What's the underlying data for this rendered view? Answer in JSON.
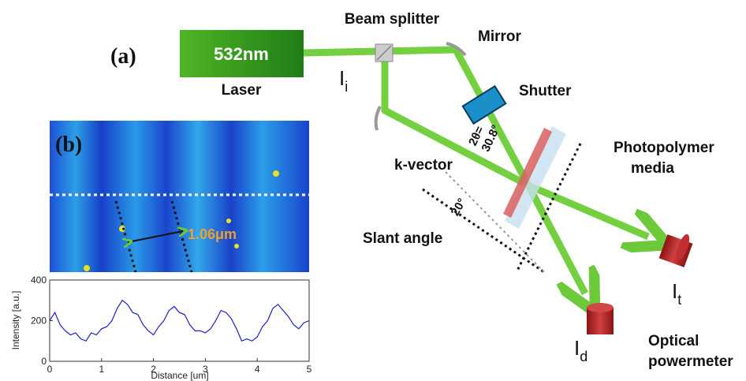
{
  "panel_a": {
    "tag": "(a)",
    "laser_wavelength": "532nm",
    "laser": "Laser",
    "beam_splitter": "Beam splitter",
    "mirror": "Mirror",
    "incident": {
      "main": "I",
      "sub": "i"
    },
    "shutter": "Shutter",
    "angle_2theta": [
      "2θ=",
      "30.8°"
    ],
    "k_vector": "k-vector",
    "media": [
      "Photopolymer",
      "media"
    ],
    "slant_value": "20°",
    "slant_angle": "Slant angle",
    "transmitted": {
      "main": "I",
      "sub": "t"
    },
    "diffracted": {
      "main": "I",
      "sub": "d"
    },
    "powermeter": [
      "Optical",
      "powermeter"
    ]
  },
  "panel_b": {
    "tag": "(b)",
    "period": "1.06μm"
  },
  "chart_data": {
    "type": "line",
    "x_label": "Distance [um]",
    "y_label": "Intensity [a.u.]",
    "x": [
      0,
      0.1,
      0.2,
      0.3,
      0.4,
      0.5,
      0.6,
      0.7,
      0.8,
      0.9,
      1,
      1.1,
      1.2,
      1.3,
      1.4,
      1.5,
      1.6,
      1.7,
      1.8,
      1.9,
      2,
      2.1,
      2.2,
      2.3,
      2.4,
      2.5,
      2.6,
      2.7,
      2.8,
      2.9,
      3,
      3.1,
      3.2,
      3.3,
      3.4,
      3.5,
      3.6,
      3.7,
      3.8,
      3.9,
      4,
      4.1,
      4.2,
      4.3,
      4.4,
      4.5,
      4.6,
      4.7,
      4.8,
      4.9,
      5
    ],
    "values": [
      200,
      240,
      180,
      150,
      130,
      140,
      110,
      100,
      140,
      130,
      160,
      170,
      200,
      260,
      300,
      280,
      240,
      230,
      180,
      150,
      130,
      170,
      200,
      250,
      270,
      240,
      230,
      180,
      150,
      150,
      140,
      160,
      200,
      250,
      240,
      210,
      160,
      100,
      110,
      100,
      120,
      170,
      200,
      260,
      280,
      250,
      220,
      180,
      160,
      190,
      200
    ],
    "color": "#1f1fd0",
    "xlim": [
      0,
      5
    ],
    "ylim": [
      0,
      400
    ],
    "xticks": [
      0,
      1,
      2,
      3,
      4,
      5
    ],
    "yticks": [
      0,
      200,
      400
    ]
  }
}
